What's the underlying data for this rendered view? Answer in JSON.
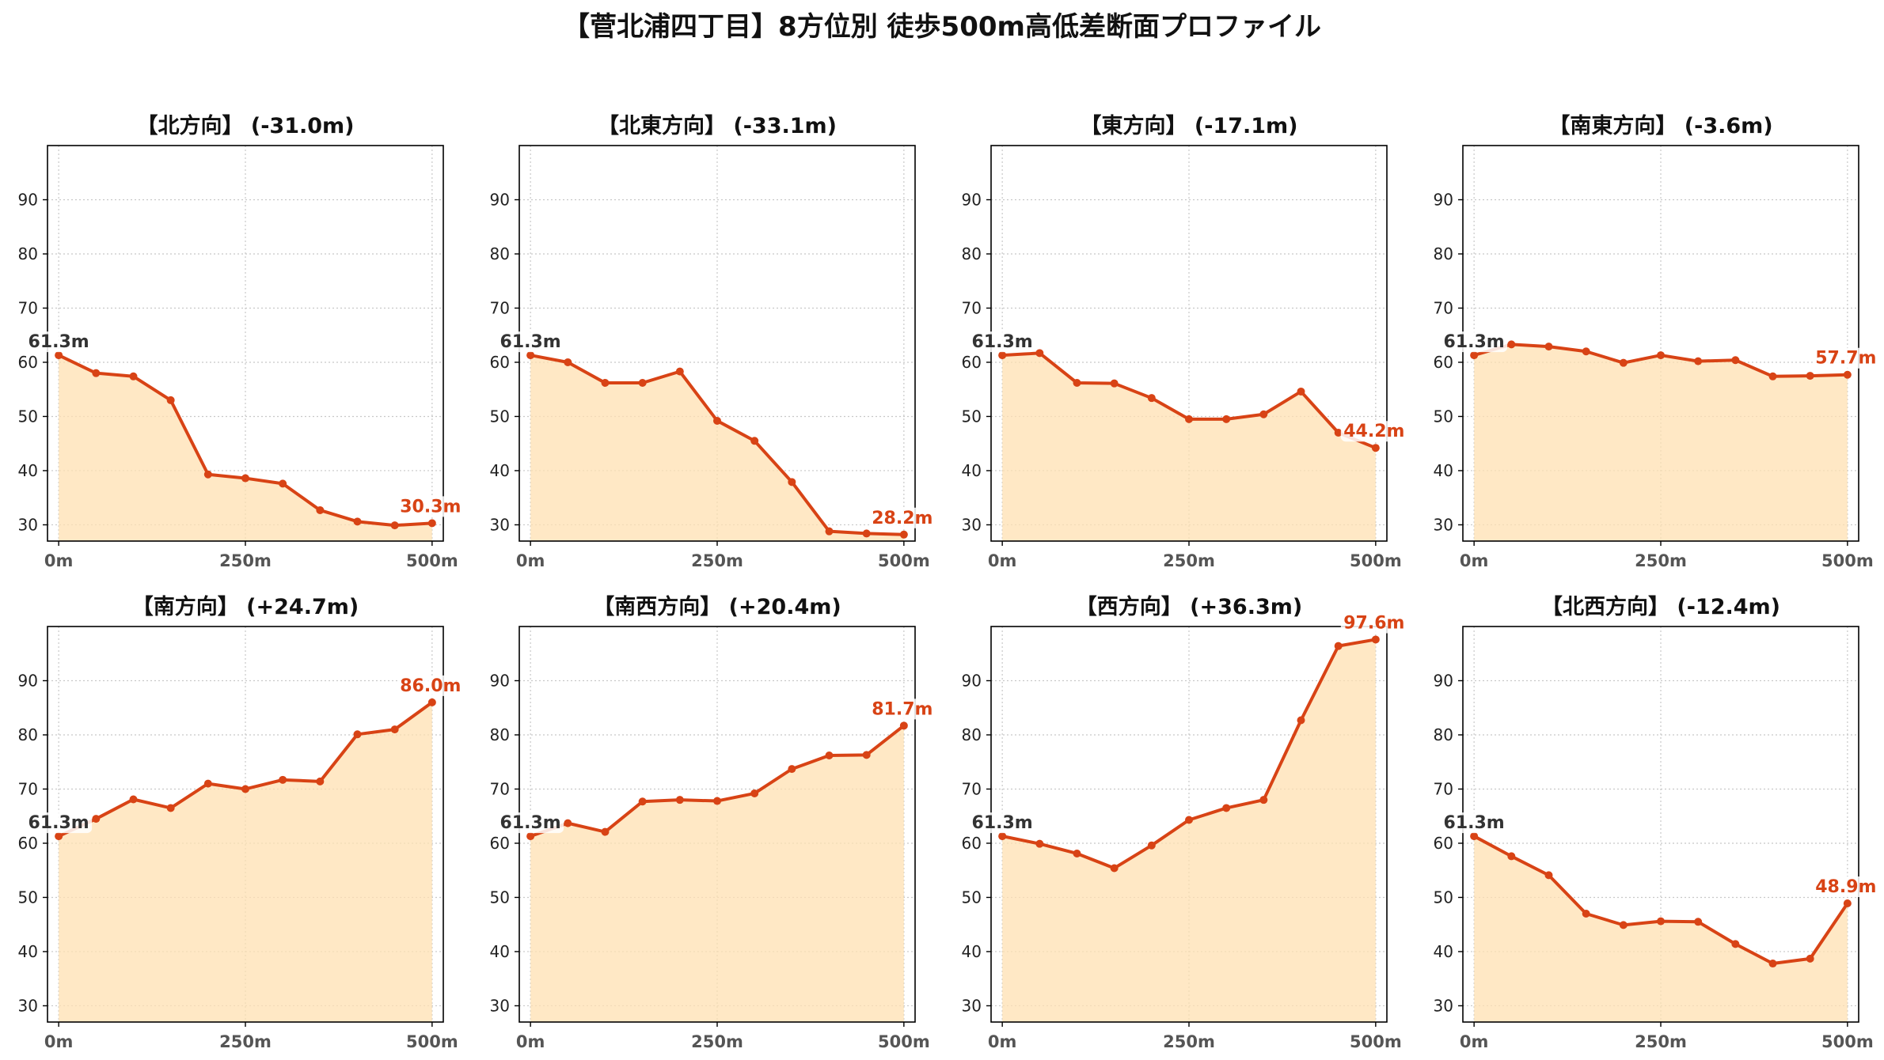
{
  "figure": {
    "title": "【菅北浦四丁目】8方位別 徒歩500m高低差断面プロファイル"
  },
  "colors": {
    "line": "#d84315",
    "fill": "#ffe0b2",
    "grid": "#c8c8c8",
    "start_label": "#333333",
    "end_label": "#d84315"
  },
  "chart_data": [
    {
      "type": "area",
      "title": "【北方向】 (-31.0m)",
      "x": [
        0,
        50,
        100,
        150,
        200,
        250,
        300,
        350,
        400,
        450,
        500
      ],
      "values": [
        61.3,
        58.0,
        57.4,
        53.0,
        39.3,
        38.6,
        37.6,
        32.7,
        30.6,
        29.9,
        30.3
      ],
      "start_label": "61.3m",
      "end_label": "30.3m",
      "ylim": [
        27,
        100
      ],
      "xlim": [
        -15,
        515
      ],
      "yticks": [
        30,
        40,
        50,
        60,
        70,
        80,
        90
      ],
      "xticks": [
        0,
        250,
        500
      ],
      "xtick_labels": [
        "0m",
        "250m",
        "500m"
      ],
      "grid": true
    },
    {
      "type": "area",
      "title": "【北東方向】 (-33.1m)",
      "x": [
        0,
        50,
        100,
        150,
        200,
        250,
        300,
        350,
        400,
        450,
        500
      ],
      "values": [
        61.3,
        60.0,
        56.2,
        56.2,
        58.3,
        49.2,
        45.5,
        37.9,
        28.8,
        28.4,
        28.2
      ],
      "start_label": "61.3m",
      "end_label": "28.2m",
      "ylim": [
        27,
        100
      ],
      "xlim": [
        -15,
        515
      ],
      "yticks": [
        30,
        40,
        50,
        60,
        70,
        80,
        90
      ],
      "xticks": [
        0,
        250,
        500
      ],
      "xtick_labels": [
        "0m",
        "250m",
        "500m"
      ],
      "grid": true
    },
    {
      "type": "area",
      "title": "【東方向】 (-17.1m)",
      "x": [
        0,
        50,
        100,
        150,
        200,
        250,
        300,
        350,
        400,
        450,
        500
      ],
      "values": [
        61.3,
        61.7,
        56.2,
        56.1,
        53.4,
        49.5,
        49.5,
        50.4,
        54.6,
        47.0,
        44.2
      ],
      "start_label": "61.3m",
      "end_label": "44.2m",
      "ylim": [
        27,
        100
      ],
      "xlim": [
        -15,
        515
      ],
      "yticks": [
        30,
        40,
        50,
        60,
        70,
        80,
        90
      ],
      "xticks": [
        0,
        250,
        500
      ],
      "xtick_labels": [
        "0m",
        "250m",
        "500m"
      ],
      "grid": true
    },
    {
      "type": "area",
      "title": "【南東方向】 (-3.6m)",
      "x": [
        0,
        50,
        100,
        150,
        200,
        250,
        300,
        350,
        400,
        450,
        500
      ],
      "values": [
        61.3,
        63.3,
        62.9,
        62.0,
        59.9,
        61.3,
        60.2,
        60.4,
        57.4,
        57.5,
        57.7
      ],
      "start_label": "61.3m",
      "end_label": "57.7m",
      "ylim": [
        27,
        100
      ],
      "xlim": [
        -15,
        515
      ],
      "yticks": [
        30,
        40,
        50,
        60,
        70,
        80,
        90
      ],
      "xticks": [
        0,
        250,
        500
      ],
      "xtick_labels": [
        "0m",
        "250m",
        "500m"
      ],
      "grid": true
    },
    {
      "type": "area",
      "title": "【南方向】 (+24.7m)",
      "x": [
        0,
        50,
        100,
        150,
        200,
        250,
        300,
        350,
        400,
        450,
        500
      ],
      "values": [
        61.3,
        64.5,
        68.1,
        66.5,
        71.0,
        70.0,
        71.7,
        71.4,
        80.1,
        81.0,
        86.0
      ],
      "start_label": "61.3m",
      "end_label": "86.0m",
      "ylim": [
        27,
        100
      ],
      "xlim": [
        -15,
        515
      ],
      "yticks": [
        30,
        40,
        50,
        60,
        70,
        80,
        90
      ],
      "xticks": [
        0,
        250,
        500
      ],
      "xtick_labels": [
        "0m",
        "250m",
        "500m"
      ],
      "grid": true
    },
    {
      "type": "area",
      "title": "【南西方向】 (+20.4m)",
      "x": [
        0,
        50,
        100,
        150,
        200,
        250,
        300,
        350,
        400,
        450,
        500
      ],
      "values": [
        61.3,
        63.7,
        62.1,
        67.7,
        68.0,
        67.8,
        69.2,
        73.7,
        76.2,
        76.3,
        81.7
      ],
      "start_label": "61.3m",
      "end_label": "81.7m",
      "ylim": [
        27,
        100
      ],
      "xlim": [
        -15,
        515
      ],
      "yticks": [
        30,
        40,
        50,
        60,
        70,
        80,
        90
      ],
      "xticks": [
        0,
        250,
        500
      ],
      "xtick_labels": [
        "0m",
        "250m",
        "500m"
      ],
      "grid": true
    },
    {
      "type": "area",
      "title": "【西方向】 (+36.3m)",
      "x": [
        0,
        50,
        100,
        150,
        200,
        250,
        300,
        350,
        400,
        450,
        500
      ],
      "values": [
        61.3,
        59.9,
        58.1,
        55.4,
        59.6,
        64.3,
        66.5,
        68.0,
        82.7,
        96.4,
        97.6
      ],
      "start_label": "61.3m",
      "end_label": "97.6m",
      "ylim": [
        27,
        100
      ],
      "xlim": [
        -15,
        515
      ],
      "yticks": [
        30,
        40,
        50,
        60,
        70,
        80,
        90
      ],
      "xticks": [
        0,
        250,
        500
      ],
      "xtick_labels": [
        "0m",
        "250m",
        "500m"
      ],
      "grid": true
    },
    {
      "type": "area",
      "title": "【北西方向】 (-12.4m)",
      "x": [
        0,
        50,
        100,
        150,
        200,
        250,
        300,
        350,
        400,
        450,
        500
      ],
      "values": [
        61.3,
        57.6,
        54.1,
        47.0,
        44.9,
        45.6,
        45.5,
        41.4,
        37.8,
        38.7,
        48.9
      ],
      "start_label": "61.3m",
      "end_label": "48.9m",
      "ylim": [
        27,
        100
      ],
      "xlim": [
        -15,
        515
      ],
      "yticks": [
        30,
        40,
        50,
        60,
        70,
        80,
        90
      ],
      "xticks": [
        0,
        250,
        500
      ],
      "xtick_labels": [
        "0m",
        "250m",
        "500m"
      ],
      "grid": true
    }
  ]
}
